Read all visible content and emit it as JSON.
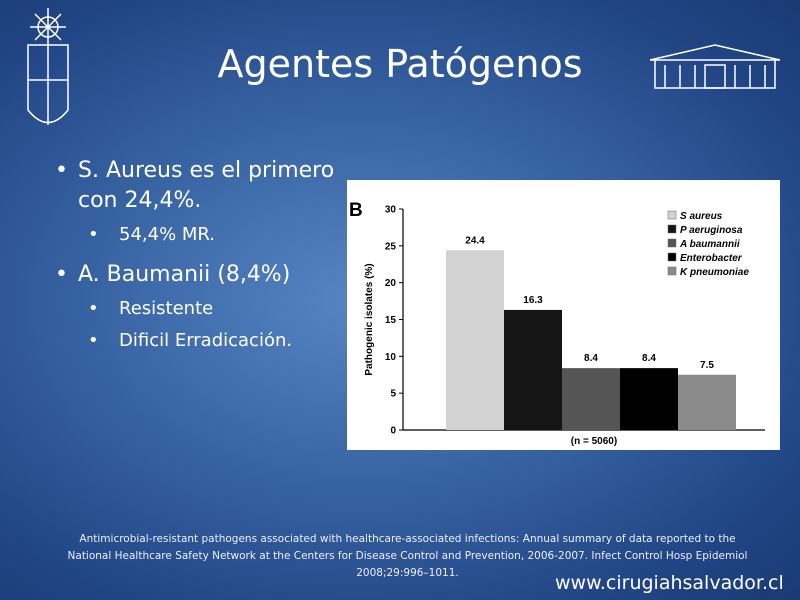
{
  "title": "Agentes Patógenos",
  "bullets": [
    {
      "text": "S. Aureus es el primero con 24,4%.",
      "sub": [
        "54,4% MR."
      ]
    },
    {
      "text": "A. Baumanii (8,4%)",
      "sub": [
        "Resistente",
        "Dificil Erradicación."
      ]
    }
  ],
  "chart_data": {
    "type": "bar",
    "panel_label": "B",
    "ylabel": "Pathogenic isolates (%)",
    "xlabel": "(n = 5060)",
    "categories": [
      "S aureus",
      "P aeruginosa",
      "A baumannii",
      "Enterobacter",
      "K pneumoniae"
    ],
    "values": [
      24.4,
      16.3,
      8.4,
      8.4,
      7.5
    ],
    "colors": [
      "#d2d2d2",
      "#151515",
      "#555555",
      "#000000",
      "#8a8a8a"
    ],
    "ylim": [
      0,
      30
    ],
    "yticks": [
      0,
      5,
      10,
      15,
      20,
      25,
      30
    ]
  },
  "citation": "Antimicrobial-resistant pathogens associated with healthcare-associated infections: Annual summary of data reported to the National Healthcare Safety Network at the Centers for Disease Control and Prevention, 2006-2007. Infect Control Hosp Epidemiol 2008;29:996–1011.",
  "website": "www.cirugiahsalvador.cl"
}
